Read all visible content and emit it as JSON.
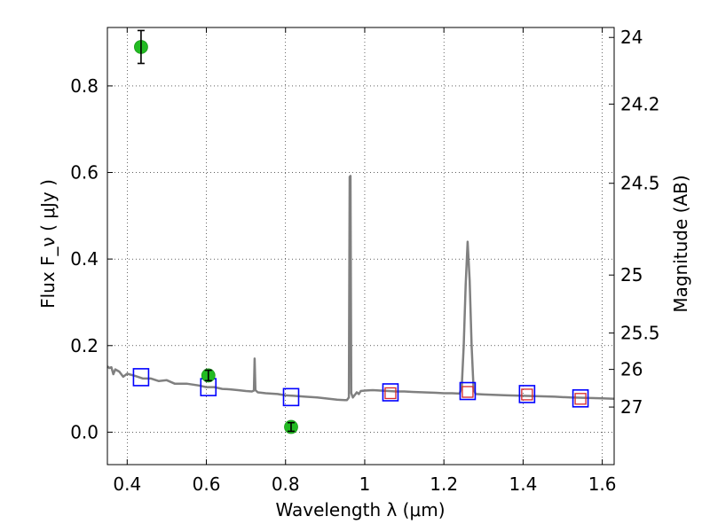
{
  "chart_data": {
    "type": "scatter",
    "title": "",
    "xlabel": "Wavelength  λ (μm)",
    "ylabel": "Flux  F_ν  ( μJy )",
    "ylabel_right": "Magnitude (AB)",
    "xlim": [
      0.35,
      1.63
    ],
    "ylim": [
      -0.075,
      0.935
    ],
    "grid": true,
    "x_ticks": [
      {
        "value": 0.4,
        "label": "0.4"
      },
      {
        "value": 0.6,
        "label": "0.6"
      },
      {
        "value": 0.8,
        "label": "0.8"
      },
      {
        "value": 1.0,
        "label": "1"
      },
      {
        "value": 1.2,
        "label": "1.2"
      },
      {
        "value": 1.4,
        "label": "1.4"
      },
      {
        "value": 1.6,
        "label": "1.6"
      }
    ],
    "y_ticks": [
      {
        "value": 0.0,
        "label": "0.0"
      },
      {
        "value": 0.2,
        "label": "0.2"
      },
      {
        "value": 0.4,
        "label": "0.4"
      },
      {
        "value": 0.6,
        "label": "0.6"
      },
      {
        "value": 0.8,
        "label": "0.8"
      }
    ],
    "right_ticks": [
      {
        "flux": 0.912,
        "label": "24"
      },
      {
        "flux": 0.758,
        "label": "24.2"
      },
      {
        "flux": 0.575,
        "label": "24.5"
      },
      {
        "flux": 0.363,
        "label": "25"
      },
      {
        "flux": 0.229,
        "label": "25.5"
      },
      {
        "flux": 0.145,
        "label": "26"
      },
      {
        "flux": 0.058,
        "label": "27"
      }
    ],
    "series": [
      {
        "name": "model spectrum",
        "kind": "line",
        "color": "#808080",
        "points": [
          [
            0.35,
            0.152
          ],
          [
            0.355,
            0.148
          ],
          [
            0.36,
            0.15
          ],
          [
            0.365,
            0.134
          ],
          [
            0.37,
            0.145
          ],
          [
            0.38,
            0.14
          ],
          [
            0.39,
            0.128
          ],
          [
            0.4,
            0.135
          ],
          [
            0.42,
            0.13
          ],
          [
            0.44,
            0.124
          ],
          [
            0.46,
            0.124
          ],
          [
            0.48,
            0.118
          ],
          [
            0.5,
            0.12
          ],
          [
            0.52,
            0.112
          ],
          [
            0.55,
            0.112
          ],
          [
            0.58,
            0.108
          ],
          [
            0.6,
            0.104
          ],
          [
            0.62,
            0.104
          ],
          [
            0.64,
            0.1
          ],
          [
            0.66,
            0.099
          ],
          [
            0.68,
            0.097
          ],
          [
            0.7,
            0.095
          ],
          [
            0.715,
            0.094
          ],
          [
            0.72,
            0.096
          ],
          [
            0.722,
            0.17
          ],
          [
            0.724,
            0.097
          ],
          [
            0.73,
            0.092
          ],
          [
            0.75,
            0.09
          ],
          [
            0.78,
            0.088
          ],
          [
            0.8,
            0.085
          ],
          [
            0.82,
            0.084
          ],
          [
            0.85,
            0.082
          ],
          [
            0.88,
            0.08
          ],
          [
            0.9,
            0.078
          ],
          [
            0.93,
            0.075
          ],
          [
            0.95,
            0.074
          ],
          [
            0.955,
            0.074
          ],
          [
            0.96,
            0.08
          ],
          [
            0.962,
            0.59
          ],
          [
            0.964,
            0.592
          ],
          [
            0.966,
            0.09
          ],
          [
            0.97,
            0.08
          ],
          [
            0.975,
            0.086
          ],
          [
            0.98,
            0.092
          ],
          [
            0.985,
            0.088
          ],
          [
            0.99,
            0.095
          ],
          [
            1.0,
            0.096
          ],
          [
            1.02,
            0.097
          ],
          [
            1.04,
            0.096
          ],
          [
            1.06,
            0.095
          ],
          [
            1.08,
            0.094
          ],
          [
            1.1,
            0.094
          ],
          [
            1.12,
            0.093
          ],
          [
            1.15,
            0.092
          ],
          [
            1.18,
            0.091
          ],
          [
            1.2,
            0.09
          ],
          [
            1.22,
            0.09
          ],
          [
            1.24,
            0.089
          ],
          [
            1.245,
            0.105
          ],
          [
            1.25,
            0.2
          ],
          [
            1.255,
            0.34
          ],
          [
            1.26,
            0.44
          ],
          [
            1.265,
            0.35
          ],
          [
            1.27,
            0.2
          ],
          [
            1.275,
            0.1
          ],
          [
            1.28,
            0.088
          ],
          [
            1.3,
            0.087
          ],
          [
            1.33,
            0.086
          ],
          [
            1.36,
            0.085
          ],
          [
            1.4,
            0.084
          ],
          [
            1.44,
            0.083
          ],
          [
            1.48,
            0.082
          ],
          [
            1.52,
            0.08
          ],
          [
            1.56,
            0.079
          ],
          [
            1.6,
            0.078
          ],
          [
            1.63,
            0.077
          ]
        ]
      },
      {
        "name": "model photometry",
        "kind": "open-square",
        "color": "#0000ff",
        "points": [
          [
            0.435,
            0.127
          ],
          [
            0.605,
            0.104
          ],
          [
            0.814,
            0.081
          ],
          [
            1.065,
            0.092
          ],
          [
            1.26,
            0.095
          ],
          [
            1.41,
            0.088
          ],
          [
            1.545,
            0.078
          ]
        ]
      },
      {
        "name": "near-infrared photometry",
        "kind": "open-square-small",
        "color": "#d62728",
        "points": [
          [
            1.065,
            0.09
          ],
          [
            1.26,
            0.093
          ],
          [
            1.41,
            0.087
          ],
          [
            1.545,
            0.077
          ]
        ]
      },
      {
        "name": "observed photometry",
        "kind": "filled-circle",
        "color": "#22bb22",
        "points": [
          {
            "x": 0.435,
            "y": 0.89,
            "err": 0.038
          },
          {
            "x": 0.605,
            "y": 0.131,
            "err": 0.012
          },
          {
            "x": 0.814,
            "y": 0.012,
            "err": 0.01
          }
        ]
      }
    ]
  }
}
